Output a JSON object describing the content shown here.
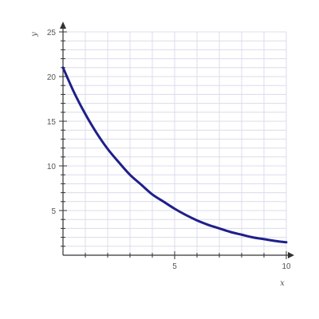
{
  "chart_data": {
    "type": "line",
    "xlabel": "x",
    "ylabel": "y",
    "xlim": [
      0,
      10
    ],
    "ylim": [
      0,
      25
    ],
    "x_ticks": [
      5,
      10
    ],
    "y_ticks": [
      5,
      10,
      15,
      20,
      25
    ],
    "x_minor_step": 1,
    "y_minor_step": 1,
    "grid": true,
    "series": [
      {
        "x": [
          0,
          0.5,
          1,
          1.5,
          2,
          2.5,
          3,
          3.5,
          4,
          4.5,
          5,
          5.5,
          6,
          6.5,
          7,
          7.5,
          8,
          8.5,
          9,
          9.5,
          10
        ],
        "y": [
          21.0,
          18.2,
          15.8,
          13.7,
          11.9,
          10.4,
          9.0,
          7.9,
          6.8,
          6.0,
          5.2,
          4.5,
          3.9,
          3.4,
          3.0,
          2.6,
          2.3,
          2.0,
          1.8,
          1.6,
          1.45
        ]
      }
    ],
    "colors": {
      "line": "#1f1f8a",
      "grid": "#dcdcec",
      "axis": "#333333"
    }
  }
}
